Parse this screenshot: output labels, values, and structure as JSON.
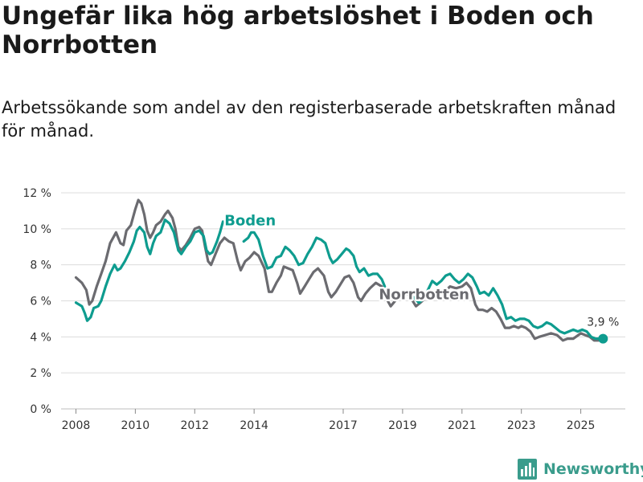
{
  "header": {
    "title": "Ungefär lika hög arbetslöshet i Boden och Norrbotten",
    "subtitle": "Arbetssökande som andel av den registerbaserade arbetskraften månad för månad."
  },
  "brand": {
    "name": "Newsworthy"
  },
  "colors": {
    "boden": "#0e9c8f",
    "norrbotten": "#6b6b70",
    "grid": "#dcdcdc",
    "text": "#333333"
  },
  "chart_data": {
    "type": "line",
    "title": "Ungefär lika hög arbetslöshet i Boden och Norrbotten",
    "xlabel": "",
    "ylabel": "",
    "x_range": [
      2007.5,
      2026.5
    ],
    "ylim": [
      0,
      12
    ],
    "y_ticks": [
      {
        "value": 0,
        "label": "0 %"
      },
      {
        "value": 2,
        "label": "2 %"
      },
      {
        "value": 4,
        "label": "4 %"
      },
      {
        "value": 6,
        "label": "6 %"
      },
      {
        "value": 8,
        "label": "8 %"
      },
      {
        "value": 10,
        "label": "10 %"
      },
      {
        "value": 12,
        "label": "12 %"
      }
    ],
    "x_ticks": [
      {
        "value": 2008,
        "label": "2008"
      },
      {
        "value": 2010,
        "label": "2010"
      },
      {
        "value": 2012,
        "label": "2012"
      },
      {
        "value": 2014,
        "label": "2014"
      },
      {
        "value": 2017,
        "label": "2017"
      },
      {
        "value": 2019,
        "label": "2019"
      },
      {
        "value": 2021,
        "label": "2021"
      },
      {
        "value": 2023,
        "label": "2023"
      },
      {
        "value": 2025,
        "label": "2025"
      }
    ],
    "series": [
      {
        "name": "Norrbotten",
        "label": "Norrbotten",
        "color": "#6b6b70",
        "points": [
          [
            2008.0,
            7.3
          ],
          [
            2008.2,
            7.0
          ],
          [
            2008.35,
            6.6
          ],
          [
            2008.45,
            5.8
          ],
          [
            2008.55,
            6.0
          ],
          [
            2008.7,
            6.8
          ],
          [
            2008.85,
            7.5
          ],
          [
            2009.0,
            8.2
          ],
          [
            2009.15,
            9.2
          ],
          [
            2009.35,
            9.8
          ],
          [
            2009.5,
            9.2
          ],
          [
            2009.6,
            9.1
          ],
          [
            2009.7,
            9.9
          ],
          [
            2009.85,
            10.2
          ],
          [
            2010.0,
            11.1
          ],
          [
            2010.1,
            11.6
          ],
          [
            2010.2,
            11.4
          ],
          [
            2010.3,
            10.8
          ],
          [
            2010.4,
            9.9
          ],
          [
            2010.5,
            9.5
          ],
          [
            2010.6,
            9.8
          ],
          [
            2010.7,
            10.2
          ],
          [
            2010.85,
            10.4
          ],
          [
            2011.0,
            10.8
          ],
          [
            2011.1,
            11.0
          ],
          [
            2011.25,
            10.6
          ],
          [
            2011.35,
            10.0
          ],
          [
            2011.45,
            9.0
          ],
          [
            2011.55,
            8.8
          ],
          [
            2011.7,
            9.1
          ],
          [
            2011.85,
            9.5
          ],
          [
            2012.0,
            10.0
          ],
          [
            2012.15,
            10.1
          ],
          [
            2012.25,
            9.9
          ],
          [
            2012.35,
            9.0
          ],
          [
            2012.45,
            8.2
          ],
          [
            2012.55,
            8.0
          ],
          [
            2012.7,
            8.6
          ],
          [
            2012.85,
            9.2
          ],
          [
            2013.0,
            9.5
          ],
          [
            2013.15,
            9.3
          ],
          [
            2013.3,
            9.2
          ],
          [
            2013.45,
            8.2
          ],
          [
            2013.55,
            7.7
          ],
          [
            2013.7,
            8.2
          ],
          [
            2013.85,
            8.4
          ],
          [
            2014.0,
            8.7
          ],
          [
            2014.15,
            8.5
          ],
          [
            2014.35,
            7.8
          ],
          [
            2014.5,
            6.5
          ],
          [
            2014.6,
            6.5
          ],
          [
            2014.75,
            7.0
          ],
          [
            2014.9,
            7.4
          ],
          [
            2015.0,
            7.9
          ],
          [
            2015.15,
            7.8
          ],
          [
            2015.3,
            7.7
          ],
          [
            2015.45,
            7.0
          ],
          [
            2015.55,
            6.4
          ],
          [
            2015.7,
            6.8
          ],
          [
            2015.85,
            7.2
          ],
          [
            2016.0,
            7.6
          ],
          [
            2016.15,
            7.8
          ],
          [
            2016.35,
            7.4
          ],
          [
            2016.5,
            6.5
          ],
          [
            2016.6,
            6.2
          ],
          [
            2016.75,
            6.5
          ],
          [
            2016.9,
            6.9
          ],
          [
            2017.05,
            7.3
          ],
          [
            2017.2,
            7.4
          ],
          [
            2017.35,
            7.0
          ],
          [
            2017.5,
            6.2
          ],
          [
            2017.6,
            6.0
          ],
          [
            2017.75,
            6.4
          ],
          [
            2017.9,
            6.7
          ],
          [
            2018.1,
            7.0
          ],
          [
            2018.3,
            6.8
          ],
          [
            2018.5,
            6.0
          ],
          [
            2018.6,
            5.7
          ],
          [
            2018.8,
            6.1
          ],
          [
            2019.0,
            6.5
          ],
          [
            2019.15,
            6.4
          ],
          [
            2019.3,
            6.1
          ],
          [
            2019.45,
            5.7
          ],
          [
            2019.6,
            5.9
          ],
          [
            2019.8,
            6.2
          ],
          [
            2020.0,
            6.5
          ],
          [
            2020.2,
            6.6
          ],
          [
            2020.4,
            6.5
          ],
          [
            2020.6,
            6.8
          ],
          [
            2020.8,
            6.7
          ],
          [
            2021.0,
            6.8
          ],
          [
            2021.15,
            7.0
          ],
          [
            2021.3,
            6.7
          ],
          [
            2021.45,
            5.8
          ],
          [
            2021.55,
            5.5
          ],
          [
            2021.7,
            5.5
          ],
          [
            2021.85,
            5.4
          ],
          [
            2022.0,
            5.6
          ],
          [
            2022.15,
            5.4
          ],
          [
            2022.3,
            5.0
          ],
          [
            2022.45,
            4.5
          ],
          [
            2022.6,
            4.5
          ],
          [
            2022.75,
            4.6
          ],
          [
            2022.9,
            4.5
          ],
          [
            2023.0,
            4.6
          ],
          [
            2023.15,
            4.5
          ],
          [
            2023.3,
            4.3
          ],
          [
            2023.45,
            3.9
          ],
          [
            2023.6,
            4.0
          ],
          [
            2023.8,
            4.1
          ],
          [
            2024.0,
            4.2
          ],
          [
            2024.2,
            4.1
          ],
          [
            2024.4,
            3.8
          ],
          [
            2024.55,
            3.9
          ],
          [
            2024.75,
            3.9
          ],
          [
            2025.0,
            4.2
          ],
          [
            2025.15,
            4.1
          ],
          [
            2025.3,
            4.0
          ],
          [
            2025.45,
            3.8
          ],
          [
            2025.6,
            3.8
          ],
          [
            2025.75,
            3.9
          ]
        ]
      },
      {
        "name": "Boden",
        "label": "Boden",
        "color": "#0e9c8f",
        "end_label": "3,9 %",
        "points": [
          [
            2008.0,
            5.9
          ],
          [
            2008.2,
            5.7
          ],
          [
            2008.3,
            5.3
          ],
          [
            2008.38,
            4.9
          ],
          [
            2008.5,
            5.1
          ],
          [
            2008.6,
            5.6
          ],
          [
            2008.75,
            5.7
          ],
          [
            2008.85,
            6.0
          ],
          [
            2009.0,
            6.8
          ],
          [
            2009.15,
            7.5
          ],
          [
            2009.3,
            8.0
          ],
          [
            2009.4,
            7.7
          ],
          [
            2009.5,
            7.8
          ],
          [
            2009.65,
            8.2
          ],
          [
            2009.8,
            8.7
          ],
          [
            2009.95,
            9.3
          ],
          [
            2010.05,
            9.9
          ],
          [
            2010.15,
            10.1
          ],
          [
            2010.3,
            9.8
          ],
          [
            2010.4,
            9.0
          ],
          [
            2010.5,
            8.6
          ],
          [
            2010.6,
            9.2
          ],
          [
            2010.7,
            9.6
          ],
          [
            2010.85,
            9.8
          ],
          [
            2011.0,
            10.5
          ],
          [
            2011.15,
            10.3
          ],
          [
            2011.3,
            9.8
          ],
          [
            2011.45,
            8.8
          ],
          [
            2011.55,
            8.6
          ],
          [
            2011.7,
            9.0
          ],
          [
            2011.85,
            9.3
          ],
          [
            2012.0,
            9.8
          ],
          [
            2012.15,
            9.9
          ],
          [
            2012.3,
            9.6
          ],
          [
            2012.4,
            8.8
          ],
          [
            2012.5,
            8.6
          ],
          [
            2012.6,
            8.7
          ],
          [
            2012.75,
            9.3
          ],
          [
            2012.85,
            9.8
          ],
          [
            2012.95,
            10.4
          ]
        ]
      },
      {
        "name": "Boden",
        "label": "",
        "color": "#0e9c8f",
        "points": [
          [
            2013.65,
            9.3
          ],
          [
            2013.8,
            9.5
          ],
          [
            2013.9,
            9.8
          ],
          [
            2014.0,
            9.8
          ],
          [
            2014.15,
            9.4
          ],
          [
            2014.3,
            8.5
          ],
          [
            2014.45,
            7.8
          ],
          [
            2014.6,
            7.9
          ],
          [
            2014.75,
            8.4
          ],
          [
            2014.9,
            8.5
          ],
          [
            2015.05,
            9.0
          ],
          [
            2015.2,
            8.8
          ],
          [
            2015.35,
            8.5
          ],
          [
            2015.5,
            8.0
          ],
          [
            2015.65,
            8.1
          ],
          [
            2015.8,
            8.6
          ],
          [
            2015.95,
            9.0
          ],
          [
            2016.1,
            9.5
          ],
          [
            2016.25,
            9.4
          ],
          [
            2016.4,
            9.2
          ],
          [
            2016.55,
            8.4
          ],
          [
            2016.65,
            8.1
          ],
          [
            2016.8,
            8.3
          ],
          [
            2016.95,
            8.6
          ],
          [
            2017.1,
            8.9
          ],
          [
            2017.2,
            8.8
          ],
          [
            2017.35,
            8.5
          ],
          [
            2017.45,
            7.9
          ],
          [
            2017.55,
            7.6
          ],
          [
            2017.7,
            7.8
          ],
          [
            2017.85,
            7.4
          ],
          [
            2018.0,
            7.5
          ],
          [
            2018.15,
            7.5
          ],
          [
            2018.3,
            7.2
          ],
          [
            2018.4,
            6.8
          ]
        ]
      },
      {
        "name": "Boden",
        "label": "",
        "color": "#0e9c8f",
        "points": [
          [
            2019.3,
            6.3
          ],
          [
            2019.55,
            5.9
          ],
          [
            2019.7,
            6.1
          ],
          [
            2019.85,
            6.6
          ],
          [
            2020.0,
            7.1
          ],
          [
            2020.15,
            6.9
          ],
          [
            2020.3,
            7.1
          ],
          [
            2020.45,
            7.4
          ],
          [
            2020.6,
            7.5
          ],
          [
            2020.75,
            7.2
          ],
          [
            2020.9,
            7.0
          ],
          [
            2021.05,
            7.2
          ],
          [
            2021.2,
            7.5
          ],
          [
            2021.35,
            7.3
          ],
          [
            2021.5,
            6.8
          ],
          [
            2021.6,
            6.4
          ],
          [
            2021.75,
            6.5
          ],
          [
            2021.9,
            6.3
          ],
          [
            2022.05,
            6.7
          ],
          [
            2022.2,
            6.3
          ],
          [
            2022.35,
            5.8
          ],
          [
            2022.5,
            5.0
          ],
          [
            2022.65,
            5.1
          ],
          [
            2022.8,
            4.9
          ],
          [
            2022.95,
            5.0
          ],
          [
            2023.1,
            5.0
          ],
          [
            2023.25,
            4.9
          ],
          [
            2023.4,
            4.6
          ],
          [
            2023.55,
            4.5
          ],
          [
            2023.7,
            4.6
          ],
          [
            2023.85,
            4.8
          ],
          [
            2024.0,
            4.7
          ],
          [
            2024.15,
            4.5
          ],
          [
            2024.3,
            4.3
          ],
          [
            2024.45,
            4.2
          ],
          [
            2024.6,
            4.3
          ],
          [
            2024.75,
            4.4
          ],
          [
            2024.9,
            4.3
          ],
          [
            2025.05,
            4.4
          ],
          [
            2025.2,
            4.3
          ],
          [
            2025.35,
            4.0
          ],
          [
            2025.5,
            3.9
          ],
          [
            2025.65,
            3.9
          ],
          [
            2025.75,
            3.9
          ]
        ]
      }
    ],
    "series_labels": [
      {
        "text": "Boden",
        "x": 2013.0,
        "y": 10.2,
        "color": "#0e9c8f"
      },
      {
        "text": "Norrbotten",
        "x": 2018.2,
        "y": 6.1,
        "color": "#6b6b70"
      }
    ],
    "end_point": {
      "x": 2025.75,
      "y": 3.9,
      "label": "3,9 %"
    }
  }
}
